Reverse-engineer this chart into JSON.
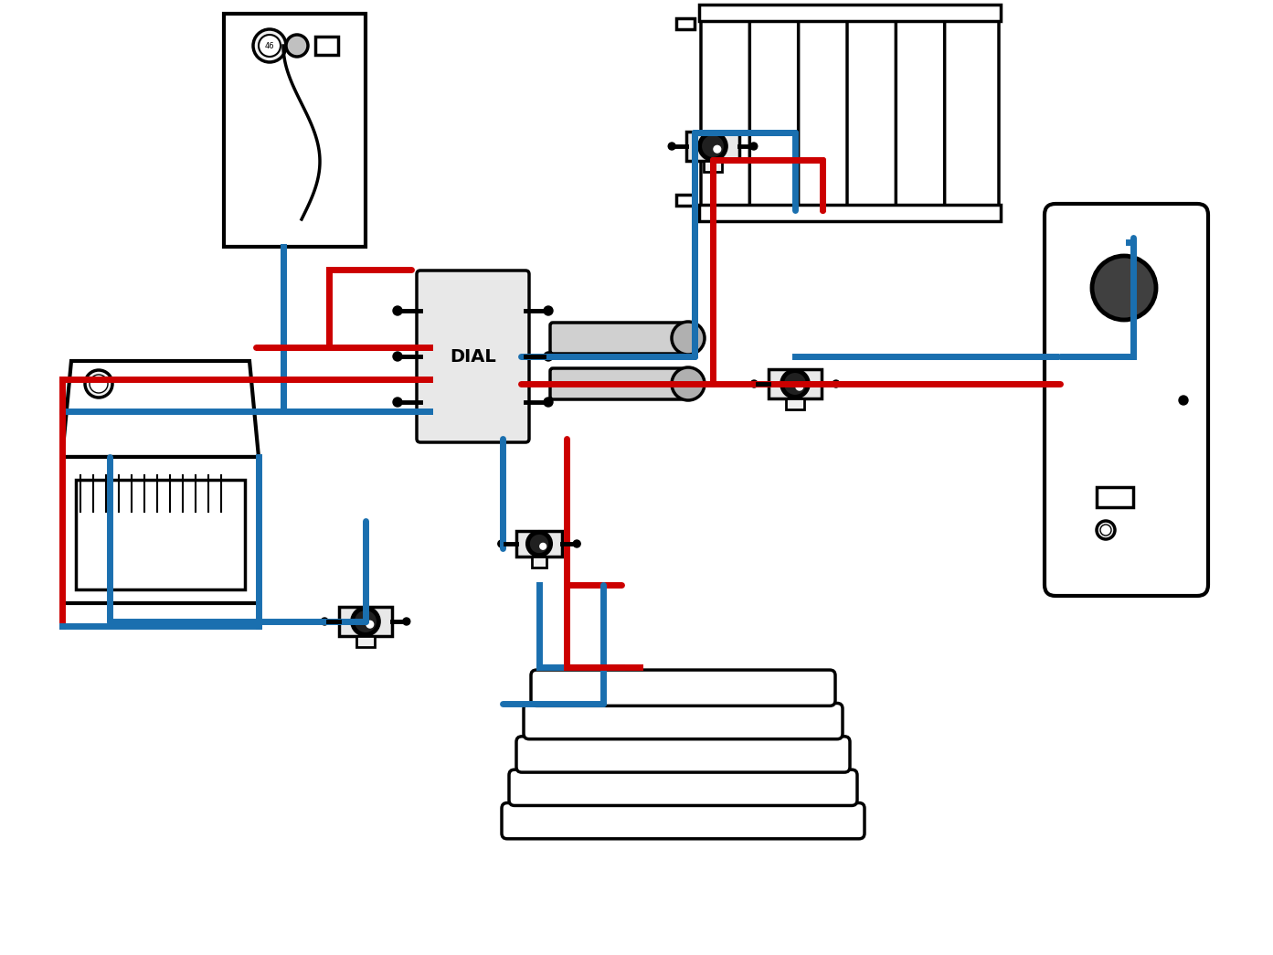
{
  "bg_color": "#ffffff",
  "line_color_red": "#cc0000",
  "line_color_blue": "#1a6faf",
  "device_color": "#000000",
  "device_fill": "#ffffff",
  "line_width": 5,
  "device_lw": 2.5
}
